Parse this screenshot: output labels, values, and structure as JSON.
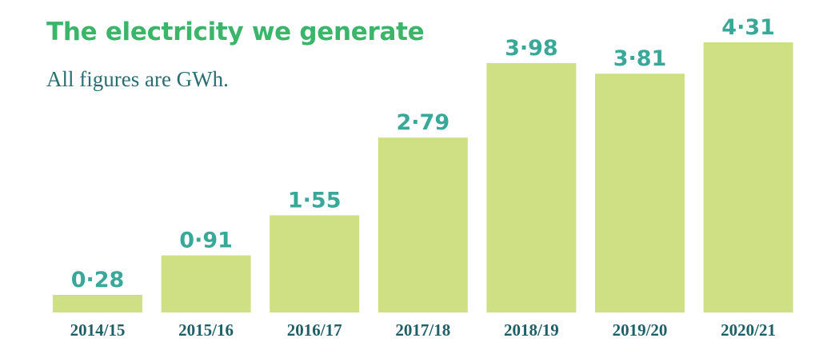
{
  "colors": {
    "title": "#3bb56a",
    "subtitle": "#2b6e72",
    "bar": "#cfe084",
    "value_label": "#3aa898",
    "category_label": "#1f5f66"
  },
  "chart_data": {
    "type": "bar",
    "title": "The electricity we generate",
    "subtitle": "All figures are GWh.",
    "xlabel": "",
    "ylabel": "",
    "categories": [
      "2014/15",
      "2015/16",
      "2016/17",
      "2017/18",
      "2018/19",
      "2019/20",
      "2020/21"
    ],
    "values": [
      0.28,
      0.91,
      1.55,
      2.79,
      3.98,
      3.81,
      4.31
    ],
    "value_labels": [
      "0·28",
      "0·91",
      "1·55",
      "2·79",
      "3·98",
      "3·81",
      "4·31"
    ],
    "ylim": [
      0,
      4.31
    ],
    "grid": false,
    "legend": "none"
  }
}
